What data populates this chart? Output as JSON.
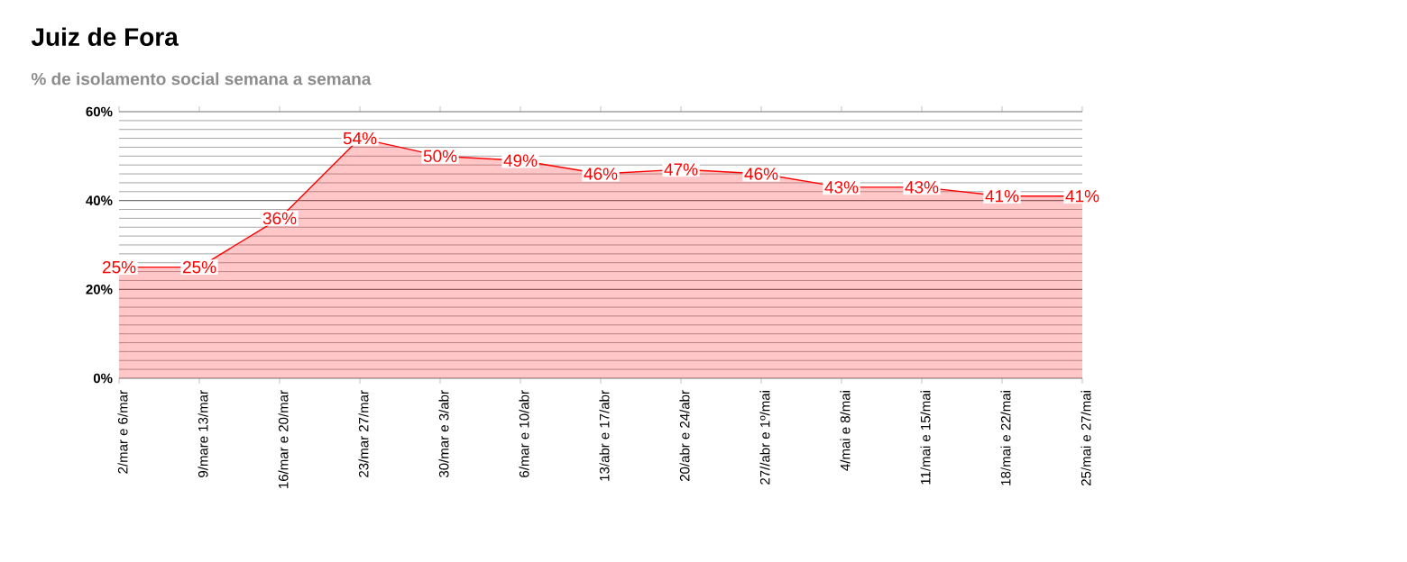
{
  "chart_data": {
    "type": "area",
    "title": "Juiz de Fora",
    "subtitle": "% de isolamento social semana a semana",
    "categories": [
      "2/mar e 6/mar",
      "9/mare 13/mar",
      "16/mar e 20/mar",
      "23/mar 27/mar",
      "30/mar e 3/abr",
      "6/mar e 10/abr",
      "13/abr e 17/abr",
      "20/abr e 24/abr",
      "27//abr e 1º/mai",
      "4/mai e 8/mai",
      "11/mai e 15/mai",
      "18/mai e 22/mai",
      "25/mai e 27/mai"
    ],
    "series": [
      {
        "color": "#ff0000",
        "values": [
          25,
          25,
          36,
          54,
          50,
          49,
          46,
          47,
          46,
          43,
          43,
          41,
          41
        ]
      }
    ],
    "value_labels": [
      "25%",
      "25%",
      "36%",
      "54%",
      "50%",
      "49%",
      "46%",
      "47%",
      "46%",
      "43%",
      "43%",
      "41%",
      "41%"
    ],
    "ylim": [
      0,
      60
    ],
    "yticks": [
      {
        "value": 0,
        "label": "0%"
      },
      {
        "value": 20,
        "label": "20%"
      },
      {
        "value": 40,
        "label": "40%"
      },
      {
        "value": 60,
        "label": "60%"
      }
    ],
    "grid": "y",
    "line_style": "solid"
  }
}
